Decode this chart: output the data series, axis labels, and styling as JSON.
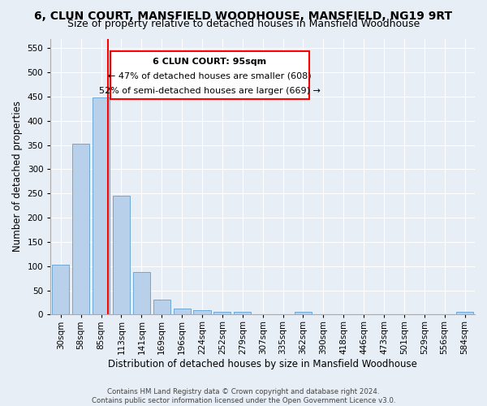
{
  "title": "6, CLUN COURT, MANSFIELD WOODHOUSE, MANSFIELD, NG19 9RT",
  "subtitle": "Size of property relative to detached houses in Mansfield Woodhouse",
  "xlabel": "Distribution of detached houses by size in Mansfield Woodhouse",
  "ylabel": "Number of detached properties",
  "footer_line1": "Contains HM Land Registry data © Crown copyright and database right 2024.",
  "footer_line2": "Contains public sector information licensed under the Open Government Licence v3.0.",
  "bin_labels": [
    "30sqm",
    "58sqm",
    "85sqm",
    "113sqm",
    "141sqm",
    "169sqm",
    "196sqm",
    "224sqm",
    "252sqm",
    "279sqm",
    "307sqm",
    "335sqm",
    "362sqm",
    "390sqm",
    "418sqm",
    "446sqm",
    "473sqm",
    "501sqm",
    "529sqm",
    "556sqm",
    "584sqm"
  ],
  "bar_values": [
    103,
    353,
    449,
    245,
    87,
    30,
    13,
    9,
    5,
    5,
    0,
    0,
    5,
    0,
    0,
    0,
    0,
    0,
    0,
    0,
    5
  ],
  "bar_color": "#b8d0ea",
  "bar_edgecolor": "#6fa8d6",
  "annotation_line1": "6 CLUN COURT: 95sqm",
  "annotation_line2": "← 47% of detached houses are smaller (608)",
  "annotation_line3": "52% of semi-detached houses are larger (669) →",
  "annotation_box_color": "white",
  "annotation_box_edgecolor": "red",
  "vline_color": "red",
  "ylim": [
    0,
    570
  ],
  "yticks": [
    0,
    50,
    100,
    150,
    200,
    250,
    300,
    350,
    400,
    450,
    500,
    550
  ],
  "background_color": "#e8eef5",
  "plot_bg_color": "#e8eef5",
  "grid_color": "white",
  "title_fontsize": 10,
  "subtitle_fontsize": 9,
  "axis_label_fontsize": 8.5,
  "tick_fontsize": 7.5,
  "annot_fontsize": 8
}
